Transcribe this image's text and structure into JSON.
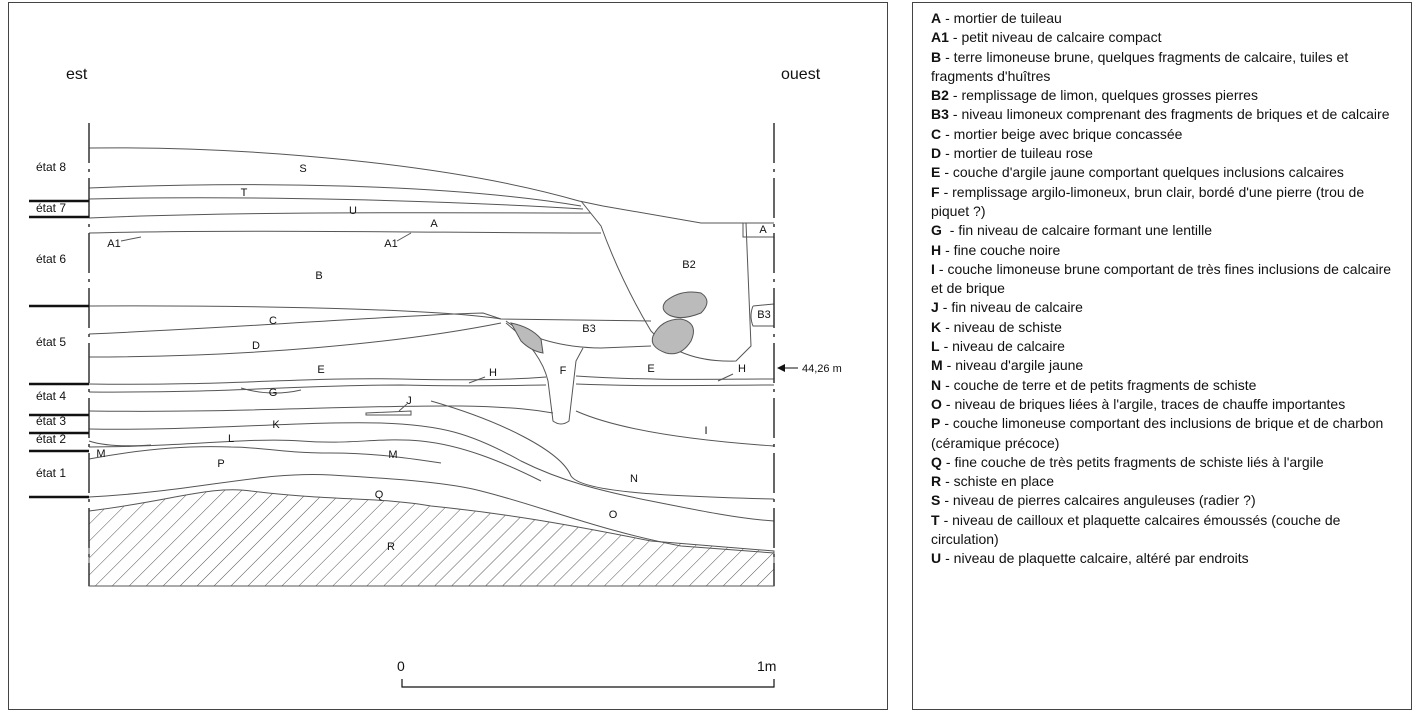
{
  "diagram": {
    "orientation": {
      "left": "est",
      "right": "ouest"
    },
    "phases": [
      "état 8",
      "état 7",
      "état 6",
      "état 5",
      "état 4",
      "état 3",
      "état 2",
      "état 1"
    ],
    "layers": [
      "S",
      "T",
      "U",
      "A",
      "A1",
      "A1",
      "B",
      "B2",
      "B3",
      "B3",
      "A",
      "C",
      "D",
      "E",
      "E",
      "F",
      "H",
      "H",
      "G",
      "J",
      "K",
      "L",
      "M",
      "M",
      "P",
      "Q",
      "N",
      "O",
      "I",
      "R"
    ],
    "elevation": "44,26 m",
    "scale": {
      "start": "0",
      "end": "1m"
    }
  },
  "legend": [
    {
      "code": "A",
      "text": "- mortier de tuileau"
    },
    {
      "code": "A1",
      "text": "- petit niveau de calcaire compact"
    },
    {
      "code": "B",
      "text": "- terre limoneuse brune, quelques fragments de calcaire, tuiles et fragments d'huîtres"
    },
    {
      "code": "B2",
      "text": "- remplissage de limon, quelques grosses pierres"
    },
    {
      "code": "B3",
      "text": "- niveau limoneux comprenant des fragments de briques et de calcaire"
    },
    {
      "code": "C",
      "text": "- mortier beige avec brique concassée"
    },
    {
      "code": "D",
      "text": "- mortier de tuileau rose"
    },
    {
      "code": "E",
      "text": "- couche d'argile jaune comportant quelques inclusions calcaires"
    },
    {
      "code": "F",
      "text": "- remplissage argilo-limoneux, brun clair, bordé d'une pierre (trou de piquet ?)"
    },
    {
      "code": "G",
      "text": " - fin niveau de calcaire formant une lentille"
    },
    {
      "code": "H",
      "text": "- fine couche noire"
    },
    {
      "code": "I",
      "text": "- couche limoneuse brune comportant de très fines inclusions de calcaire et de brique"
    },
    {
      "code": "J",
      "text": "- fin niveau de calcaire"
    },
    {
      "code": "K",
      "text": "- niveau de schiste"
    },
    {
      "code": "L",
      "text": "- niveau de calcaire"
    },
    {
      "code": "M",
      "text": "- niveau d'argile jaune"
    },
    {
      "code": "N",
      "text": "- couche de terre et de petits fragments de schiste"
    },
    {
      "code": "O",
      "text": "- niveau de briques liées à l'argile, traces de chauffe importantes"
    },
    {
      "code": "P",
      "text": "- couche limoneuse comportant des inclusions de brique et de charbon (céramique précoce)"
    },
    {
      "code": "Q",
      "text": "- fine couche de très petits fragments de schiste liés à l'argile"
    },
    {
      "code": "R",
      "text": "- schiste en place"
    },
    {
      "code": "S",
      "text": "- niveau de pierres calcaires anguleuses (radier ?)"
    },
    {
      "code": "T",
      "text": "- niveau de cailloux et plaquette calcaires émoussés (couche de circulation)"
    },
    {
      "code": "U",
      "text": "- niveau de plaquette calcaire, altéré par endroits"
    }
  ]
}
